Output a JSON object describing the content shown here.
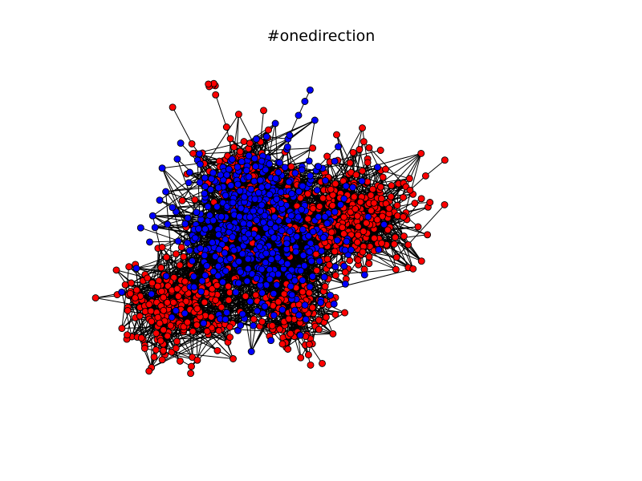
{
  "figure": {
    "title": "#onedirection"
  },
  "legend": {
    "node_colors": {
      "blue": "#0000ff",
      "red": "#ff0000"
    },
    "edge_color": "#000000",
    "node_outline": "#000000"
  }
}
